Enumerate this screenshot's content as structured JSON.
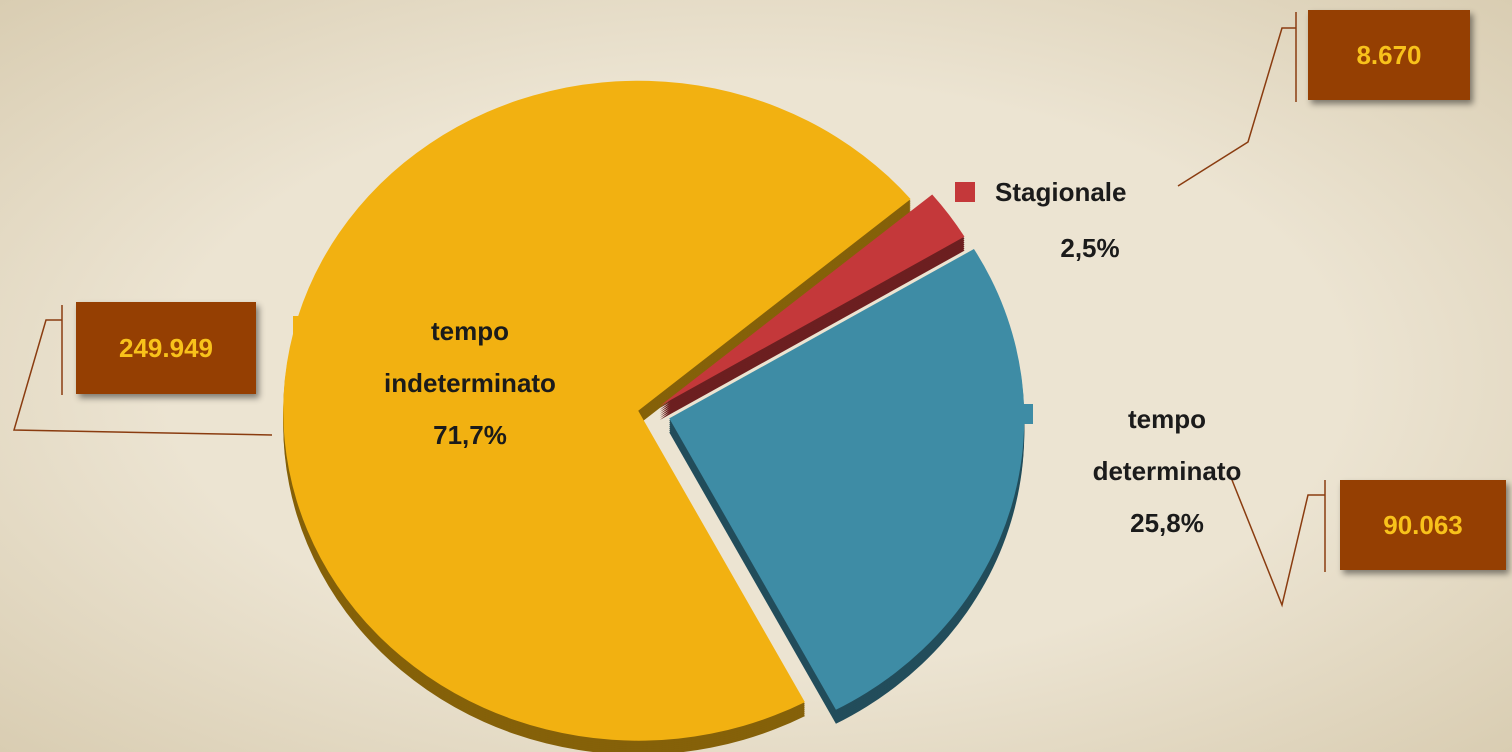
{
  "chart_data": {
    "type": "pie",
    "categories": [
      "tempo indeterminato",
      "Stagionale",
      "tempo determinato"
    ],
    "values": [
      71.7,
      2.5,
      25.8
    ],
    "value_labels": [
      "71,7%",
      "2,5%",
      "25,8%"
    ],
    "counts": [
      249949,
      8670,
      90063
    ],
    "count_labels": [
      "249.949",
      "8.670",
      "90.063"
    ],
    "colors": [
      "#f2b111",
      "#c4383a",
      "#3e8ca5"
    ]
  }
}
